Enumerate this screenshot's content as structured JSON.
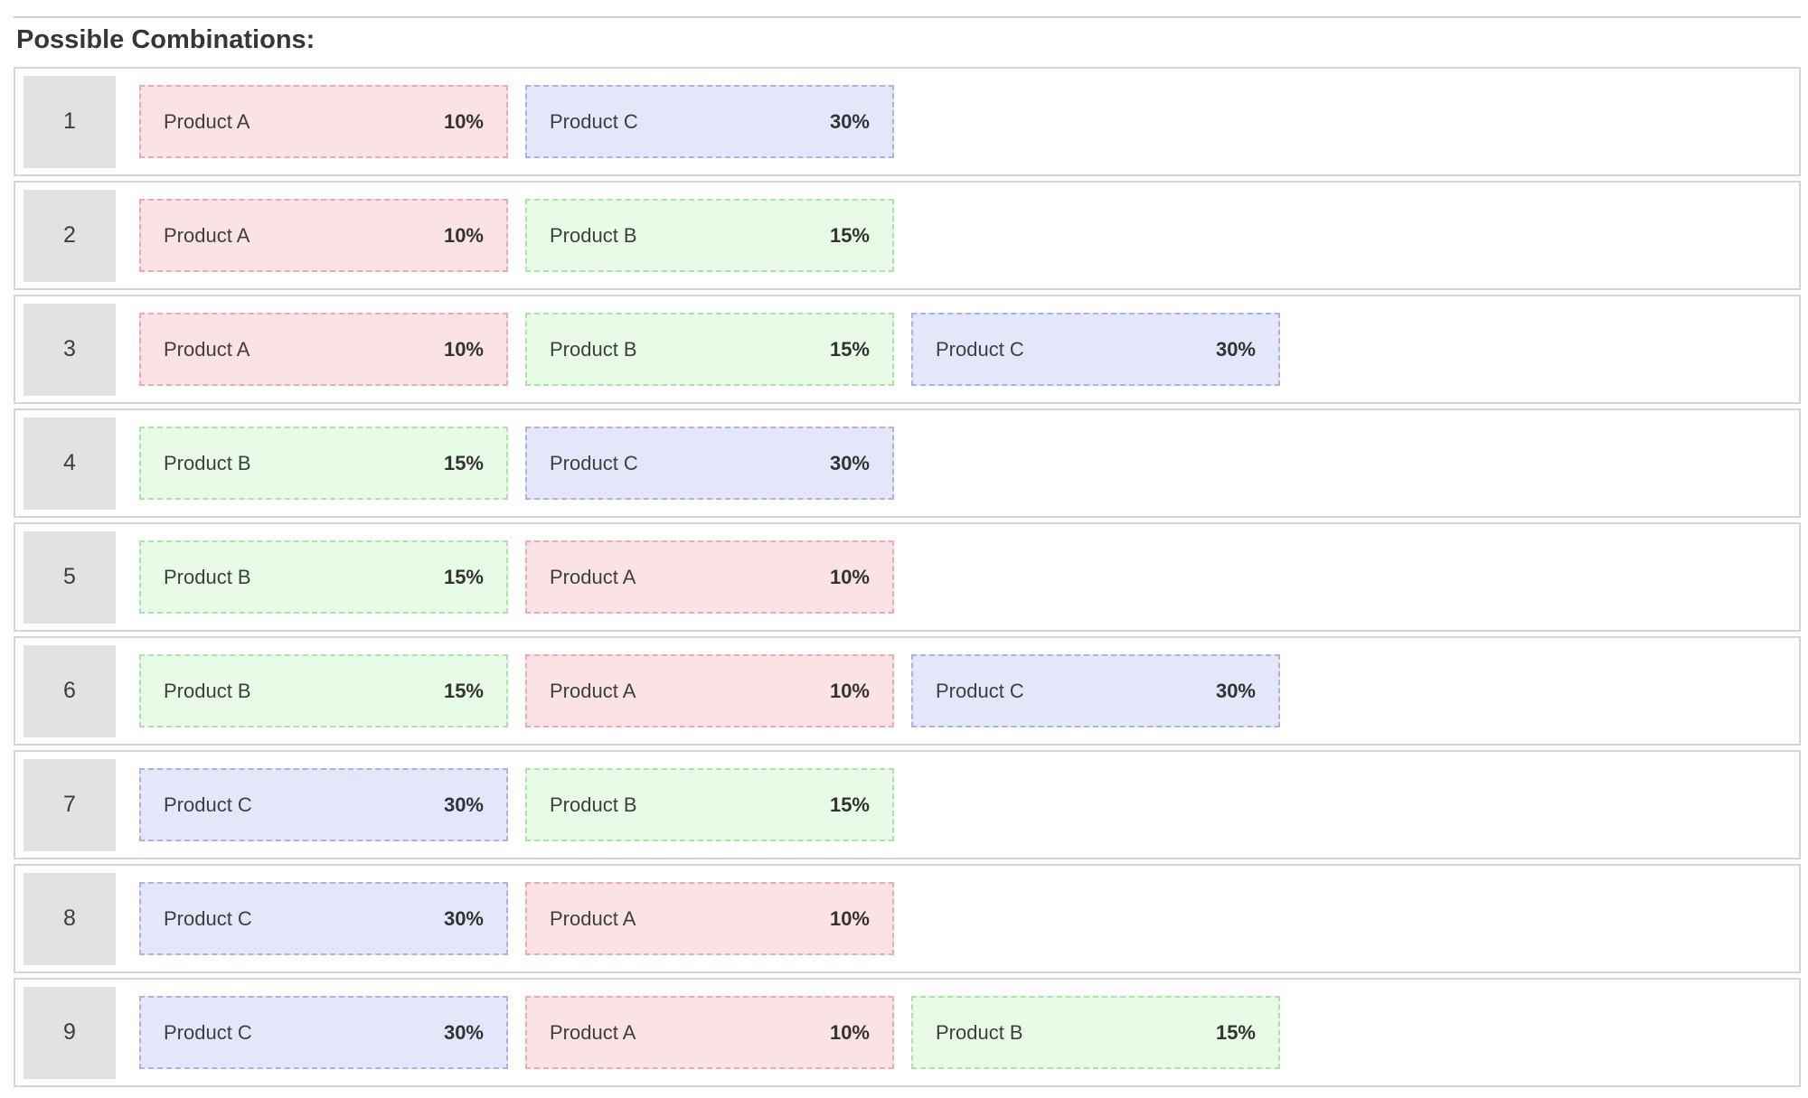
{
  "header": {
    "title": "Possible Combinations:"
  },
  "palette": {
    "a": {
      "bg": "#fbe3e5",
      "border": "#efa9b1"
    },
    "b": {
      "bg": "#e7fbe7",
      "border": "#abe3ab"
    },
    "c": {
      "bg": "#e4e7fa",
      "border": "#a9b3e8"
    }
  },
  "products": {
    "a": {
      "name": "Product A",
      "share": "10%"
    },
    "b": {
      "name": "Product B",
      "share": "15%"
    },
    "c": {
      "name": "Product C",
      "share": "30%"
    }
  },
  "combinations": [
    {
      "number": "1",
      "items": [
        {
          "type": "a",
          "name": "Product A",
          "share": "10%"
        },
        {
          "type": "c",
          "name": "Product C",
          "share": "30%"
        }
      ]
    },
    {
      "number": "2",
      "items": [
        {
          "type": "a",
          "name": "Product A",
          "share": "10%"
        },
        {
          "type": "b",
          "name": "Product B",
          "share": "15%"
        }
      ]
    },
    {
      "number": "3",
      "items": [
        {
          "type": "a",
          "name": "Product A",
          "share": "10%"
        },
        {
          "type": "b",
          "name": "Product B",
          "share": "15%"
        },
        {
          "type": "c",
          "name": "Product C",
          "share": "30%"
        }
      ]
    },
    {
      "number": "4",
      "items": [
        {
          "type": "b",
          "name": "Product B",
          "share": "15%"
        },
        {
          "type": "c",
          "name": "Product C",
          "share": "30%"
        }
      ]
    },
    {
      "number": "5",
      "items": [
        {
          "type": "b",
          "name": "Product B",
          "share": "15%"
        },
        {
          "type": "a",
          "name": "Product A",
          "share": "10%"
        }
      ]
    },
    {
      "number": "6",
      "items": [
        {
          "type": "b",
          "name": "Product B",
          "share": "15%"
        },
        {
          "type": "a",
          "name": "Product A",
          "share": "10%"
        },
        {
          "type": "c",
          "name": "Product C",
          "share": "30%"
        }
      ]
    },
    {
      "number": "7",
      "items": [
        {
          "type": "c",
          "name": "Product C",
          "share": "30%"
        },
        {
          "type": "b",
          "name": "Product B",
          "share": "15%"
        }
      ]
    },
    {
      "number": "8",
      "items": [
        {
          "type": "c",
          "name": "Product C",
          "share": "30%"
        },
        {
          "type": "a",
          "name": "Product A",
          "share": "10%"
        }
      ]
    },
    {
      "number": "9",
      "items": [
        {
          "type": "c",
          "name": "Product C",
          "share": "30%"
        },
        {
          "type": "a",
          "name": "Product A",
          "share": "10%"
        },
        {
          "type": "b",
          "name": "Product B",
          "share": "15%"
        }
      ]
    }
  ]
}
